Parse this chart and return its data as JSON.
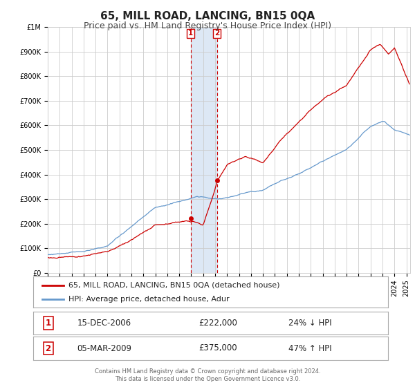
{
  "title": "65, MILL ROAD, LANCING, BN15 0QA",
  "subtitle": "Price paid vs. HM Land Registry's House Price Index (HPI)",
  "ylim": [
    0,
    1000000
  ],
  "xlim_start": 1995.0,
  "xlim_end": 2025.3,
  "background_color": "#ffffff",
  "plot_bg_color": "#ffffff",
  "grid_color": "#cccccc",
  "red_line_color": "#cc0000",
  "blue_line_color": "#6699cc",
  "marker_color": "#cc0000",
  "sale1_date": 2006.96,
  "sale1_price": 222000,
  "sale2_date": 2009.17,
  "sale2_price": 375000,
  "shade_color": "#dde8f5",
  "ytick_labels": [
    "£0",
    "£100K",
    "£200K",
    "£300K",
    "£400K",
    "£500K",
    "£600K",
    "£700K",
    "£800K",
    "£900K",
    "£1M"
  ],
  "ytick_values": [
    0,
    100000,
    200000,
    300000,
    400000,
    500000,
    600000,
    700000,
    800000,
    900000,
    1000000
  ],
  "legend_red_label": "65, MILL ROAD, LANCING, BN15 0QA (detached house)",
  "legend_blue_label": "HPI: Average price, detached house, Adur",
  "row1_num": "1",
  "row1_date": "15-DEC-2006",
  "row1_price": "£222,000",
  "row1_hpi": "24% ↓ HPI",
  "row2_num": "2",
  "row2_date": "05-MAR-2009",
  "row2_price": "£375,000",
  "row2_hpi": "47% ↑ HPI",
  "footer_line1": "Contains HM Land Registry data © Crown copyright and database right 2024.",
  "footer_line2": "This data is licensed under the Open Government Licence v3.0.",
  "title_fontsize": 11,
  "subtitle_fontsize": 9,
  "tick_fontsize": 7,
  "legend_fontsize": 8,
  "table_fontsize": 8.5,
  "footer_fontsize": 6
}
